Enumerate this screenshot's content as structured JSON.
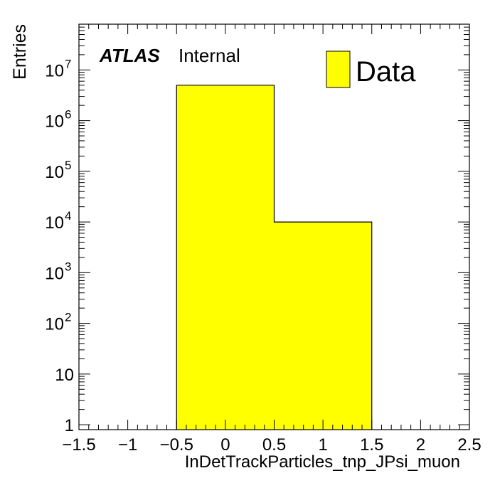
{
  "chart_data": {
    "type": "bar",
    "title": "",
    "xlabel": "InDetTrackParticles_tnp_JPsi_muon",
    "ylabel": "Entries",
    "xlim": [
      -1.5,
      2.5
    ],
    "ylim": [
      0.8,
      80000000
    ],
    "yscale": "log",
    "bins": [
      {
        "low": -0.5,
        "high": 0.5,
        "value": 5000000
      },
      {
        "low": 0.5,
        "high": 1.5,
        "value": 10000
      }
    ],
    "x_ticks": [
      "−1.5",
      "−1",
      "−0.5",
      "0",
      "0.5",
      "1",
      "1.5",
      "2",
      "2.5"
    ],
    "x_tick_values": [
      -1.5,
      -1,
      -0.5,
      0,
      0.5,
      1,
      1.5,
      2,
      2.5
    ],
    "y_ticks": [
      {
        "value": 1,
        "base": "1",
        "exp": ""
      },
      {
        "value": 10,
        "base": "10",
        "exp": ""
      },
      {
        "value": 100,
        "base": "10",
        "exp": "2"
      },
      {
        "value": 1000,
        "base": "10",
        "exp": "3"
      },
      {
        "value": 10000,
        "base": "10",
        "exp": "4"
      },
      {
        "value": 100000,
        "base": "10",
        "exp": "5"
      },
      {
        "value": 1000000,
        "base": "10",
        "exp": "6"
      },
      {
        "value": 10000000,
        "base": "10",
        "exp": "7"
      }
    ],
    "series": [
      {
        "name": "Data",
        "color": "#ffff00"
      }
    ],
    "legend_position": "top-right",
    "atlas_label": "ATLAS",
    "atlas_status": "Internal"
  }
}
